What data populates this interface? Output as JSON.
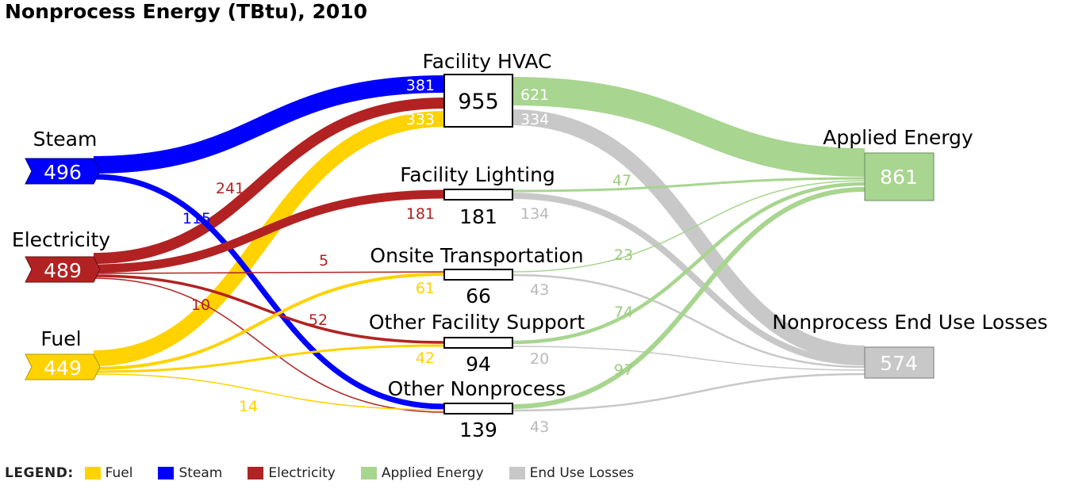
{
  "title": "Nonprocess Energy (TBtu), 2010",
  "sources": [
    {
      "key": "steam",
      "label": "Steam",
      "value": "496"
    },
    {
      "key": "electricity",
      "label": "Electricity",
      "value": "489"
    },
    {
      "key": "fuel",
      "label": "Fuel",
      "value": "449"
    }
  ],
  "end_uses": [
    {
      "key": "hvac",
      "label": "Facility HVAC",
      "value": "955"
    },
    {
      "key": "lighting",
      "label": "Facility Lighting",
      "value": "181"
    },
    {
      "key": "transport",
      "label": "Onsite Transportation",
      "value": "66"
    },
    {
      "key": "support",
      "label": "Other Facility Support",
      "value": "94"
    },
    {
      "key": "other",
      "label": "Other Nonprocess",
      "value": "139"
    }
  ],
  "outputs": [
    {
      "key": "applied",
      "label": "Applied Energy",
      "value": "861"
    },
    {
      "key": "losses",
      "label": "Nonprocess End Use Losses",
      "value": "574"
    }
  ],
  "flow_labels": {
    "steam_hvac": "381",
    "elec_hvac": "241",
    "fuel_hvac": "333",
    "steam_other": "115",
    "elec_lighting": "181",
    "elec_transport": "5",
    "elec_support": "52",
    "elec_other": "10",
    "fuel_transport": "61",
    "fuel_support": "42",
    "fuel_other": "14",
    "hvac_applied": "621",
    "hvac_losses": "334",
    "lighting_applied": "47",
    "lighting_losses": "134",
    "transport_applied": "23",
    "transport_losses": "43",
    "support_applied": "74",
    "support_losses": "20",
    "other_applied": "97",
    "other_losses": "43"
  },
  "legend": {
    "title": "LEGEND:",
    "items": [
      {
        "label": "Fuel",
        "color": "#ffd200"
      },
      {
        "label": "Steam",
        "color": "#0000ff"
      },
      {
        "label": "Electricity",
        "color": "#b22222"
      },
      {
        "label": "Applied Energy",
        "color": "#a8d58f"
      },
      {
        "label": "End Use Losses",
        "color": "#c8c8c8"
      }
    ]
  },
  "colors": {
    "fuel": "#ffd200",
    "steam": "#0000ff",
    "electricity": "#b22222",
    "applied": "#a8d58f",
    "losses": "#c8c8c8",
    "applied_text": "#9ccc7e",
    "losses_text": "#b9b9b9"
  }
}
